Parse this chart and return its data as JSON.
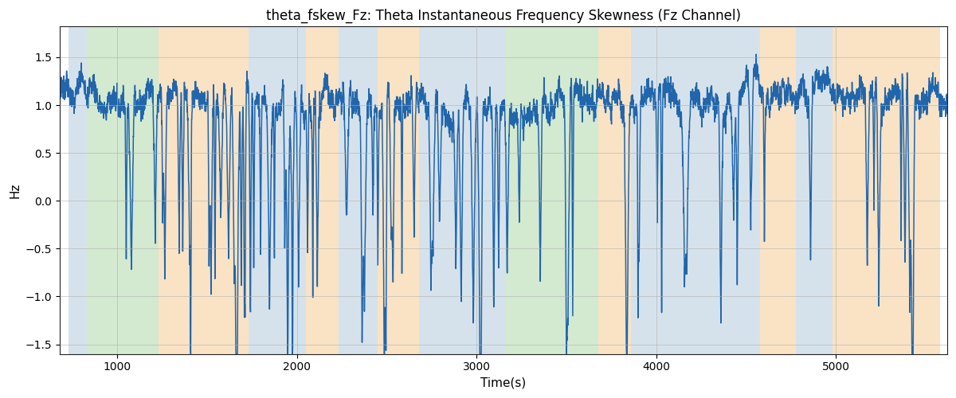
{
  "title": "theta_fskew_Fz: Theta Instantaneous Frequency Skewness (Fz Channel)",
  "xlabel": "Time(s)",
  "ylabel": "Hz",
  "xlim": [
    680,
    5620
  ],
  "ylim": [
    -1.6,
    1.82
  ],
  "yticks": [
    -1.5,
    -1.0,
    -0.5,
    0.0,
    0.5,
    1.0,
    1.5
  ],
  "xticks": [
    1000,
    2000,
    3000,
    4000,
    5000
  ],
  "line_color": "#2166ac",
  "line_width": 1.1,
  "bg_color": "#ffffff",
  "grid_color": "#b0b0b0",
  "bands": [
    {
      "xmin": 730,
      "xmax": 830,
      "color": "#aec6d8",
      "alpha": 0.5
    },
    {
      "xmin": 830,
      "xmax": 1230,
      "color": "#a8d5a2",
      "alpha": 0.5
    },
    {
      "xmin": 1230,
      "xmax": 1730,
      "color": "#f5c98a",
      "alpha": 0.5
    },
    {
      "xmin": 1730,
      "xmax": 2050,
      "color": "#aec6d8",
      "alpha": 0.5
    },
    {
      "xmin": 2050,
      "xmax": 2230,
      "color": "#f5c98a",
      "alpha": 0.5
    },
    {
      "xmin": 2230,
      "xmax": 2450,
      "color": "#aec6d8",
      "alpha": 0.5
    },
    {
      "xmin": 2450,
      "xmax": 2680,
      "color": "#f5c98a",
      "alpha": 0.5
    },
    {
      "xmin": 2680,
      "xmax": 3080,
      "color": "#aec6d8",
      "alpha": 0.5
    },
    {
      "xmin": 3080,
      "xmax": 3160,
      "color": "#aec6d8",
      "alpha": 0.5
    },
    {
      "xmin": 3160,
      "xmax": 3680,
      "color": "#a8d5a2",
      "alpha": 0.5
    },
    {
      "xmin": 3680,
      "xmax": 3860,
      "color": "#f5c98a",
      "alpha": 0.5
    },
    {
      "xmin": 3860,
      "xmax": 4580,
      "color": "#aec6d8",
      "alpha": 0.5
    },
    {
      "xmin": 4580,
      "xmax": 4780,
      "color": "#f5c98a",
      "alpha": 0.5
    },
    {
      "xmin": 4780,
      "xmax": 4980,
      "color": "#aec6d8",
      "alpha": 0.5
    },
    {
      "xmin": 4980,
      "xmax": 5580,
      "color": "#f5c98a",
      "alpha": 0.5
    }
  ],
  "seed": 7,
  "n_points": 4900,
  "x_start": 680,
  "x_end": 5620,
  "title_fontsize": 12,
  "label_fontsize": 11,
  "tick_fontsize": 10
}
